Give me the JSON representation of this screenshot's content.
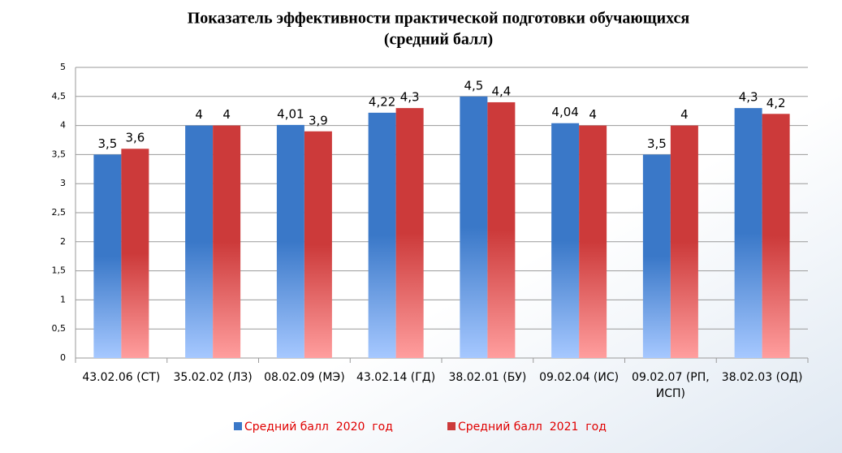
{
  "chart_data": {
    "type": "bar",
    "title": "Показатель эффективности практической подготовки обучающихся",
    "subtitle": "(средний балл)",
    "categories": [
      "43.02.06 (СТ)",
      "35.02.02 (ЛЗ)",
      "08.02.09 (МЭ)",
      "43.02.14 (ГД)",
      "38.02.01 (БУ)",
      "09.02.04 (ИС)",
      "09.02.07 (РП, ИСП)",
      "38.02.03 (ОД)"
    ],
    "series": [
      {
        "name": "Средний балл  2020  год",
        "color": "#3a78c8",
        "values": [
          3.5,
          4,
          4.01,
          4.22,
          4.5,
          4.04,
          3.5,
          4.3
        ],
        "value_labels": [
          "3,5",
          "4",
          "4,01",
          "4,22",
          "4,5",
          "4,04",
          "3,5",
          "4,3"
        ]
      },
      {
        "name": "Средний балл  2021  год",
        "color": "#cc3a3a",
        "values": [
          3.6,
          4,
          3.9,
          4.3,
          4.4,
          4,
          4,
          4.2
        ],
        "value_labels": [
          "3,6",
          "4",
          "3,9",
          "4,3",
          "4,4",
          "4",
          "4",
          "4,2"
        ]
      }
    ],
    "ylim": [
      0,
      5
    ],
    "yticks": [
      0,
      {
        "value": 0.5,
        "label": "0,5"
      },
      1,
      {
        "value": 1.5,
        "label": "1,5"
      },
      2,
      {
        "value": 2.5,
        "label": "2,5"
      },
      3,
      {
        "value": 3.5,
        "label": "3,5"
      },
      4,
      {
        "value": 4.5,
        "label": "4,5"
      },
      5
    ],
    "grid": true,
    "legend": "bottom"
  }
}
